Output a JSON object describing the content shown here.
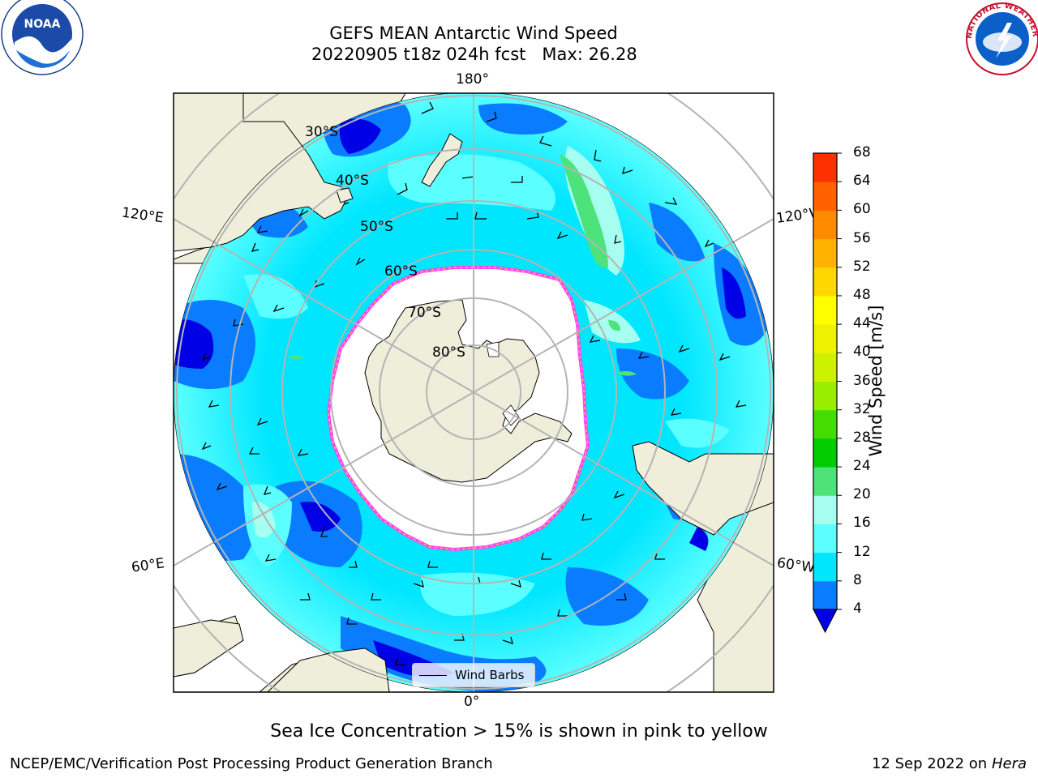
{
  "title": {
    "line1": "GEFS MEAN Antarctic Wind Speed",
    "line2": "20220905 t18z 024h fcst   Max: 26.28"
  },
  "logos": {
    "left": "NOAA",
    "right": "NATIONAL WEATHER SERVICE"
  },
  "map": {
    "projection": "south-polar-stereographic",
    "longitude_labels": {
      "top": "180°",
      "bottom": "0°",
      "left_upper": "120°E",
      "left_lower": "60°E",
      "right_upper": "120°W",
      "right_lower": "60°W"
    },
    "latitude_labels": [
      "30°S",
      "40°S",
      "50°S",
      "60°S",
      "70°S",
      "80°S"
    ],
    "legend_label": "Wind Barbs",
    "colors": {
      "land": "#efeedb",
      "ocean_4_8": "#0a7cff",
      "ocean_8_12": "#00e6ff",
      "ocean_12_16": "#5cffff",
      "ocean_16_20": "#a6fff0",
      "ocean_below_4": "#0000e6",
      "ocean_20_24": "#4de37a",
      "ice_edge": "#ff44ff",
      "ice_inner": "#ffbb33",
      "grid": "#b4b4b4"
    }
  },
  "colorbar": {
    "title": "Wind Speed [m/s]",
    "ticks": [
      "4",
      "8",
      "12",
      "16",
      "20",
      "24",
      "28",
      "32",
      "36",
      "40",
      "44",
      "48",
      "52",
      "56",
      "60",
      "64",
      "68"
    ],
    "colors": [
      "#0a7cff",
      "#00e6ff",
      "#5cffff",
      "#a6fff0",
      "#4de37a",
      "#00cc00",
      "#44dd00",
      "#99ee00",
      "#ccf200",
      "#eef200",
      "#ffff00",
      "#ffd700",
      "#ffb300",
      "#ff8c00",
      "#ff6000",
      "#ff3000",
      "#ff0000"
    ],
    "extend_color": "#0000e6"
  },
  "footer": {
    "sea_ice_note": "Sea Ice Concentration > 15% is shown in pink to yellow",
    "credit": "NCEP/EMC/Verification Post Processing Product Generation Branch",
    "date": "12 Sep 2022 on",
    "machine": "Hera"
  }
}
